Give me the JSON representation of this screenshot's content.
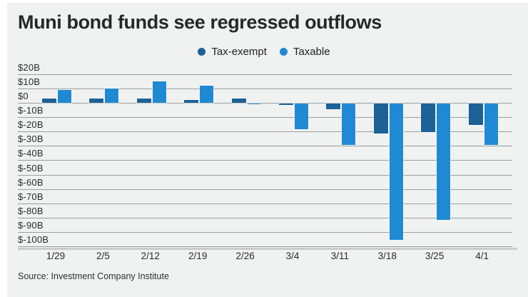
{
  "title": "Muni bond funds see regressed outflows",
  "source": "Source: Investment Company Institute",
  "colors": {
    "tax_exempt": "#1c6296",
    "taxable": "#1f8ad3",
    "background": "#f0f1f1",
    "gridline": "#9b9f9f",
    "title_text": "#282828"
  },
  "chart_data": {
    "type": "bar",
    "title": "Muni bond funds see regressed outflows",
    "categories": [
      "1/29",
      "2/5",
      "2/12",
      "2/19",
      "2/26",
      "3/4",
      "3/11",
      "3/18",
      "3/25",
      "4/1"
    ],
    "series": [
      {
        "name": "Tax-exempt",
        "color": "#1c6296",
        "values": [
          3,
          3,
          3,
          2,
          3,
          -1,
          -4,
          -21,
          -20,
          -15
        ]
      },
      {
        "name": "Taxable",
        "color": "#1f8ad3",
        "values": [
          9,
          10,
          15,
          12,
          -0.5,
          -18,
          -29,
          -95,
          -81,
          -29
        ]
      }
    ],
    "xlabel": "",
    "ylabel": "",
    "y_tick_labels": [
      "$20B",
      "$10B",
      "$0",
      "$-10B",
      "$-20B",
      "$-30B",
      "$-40B",
      "$-50B",
      "$-60B",
      "$-70B",
      "$-80B",
      "$-90B",
      "$-100B"
    ],
    "ymax": 20,
    "ymin": -100,
    "ytick_step": 10,
    "unit": "billions USD",
    "grid": true,
    "legend_position": "top-center"
  }
}
